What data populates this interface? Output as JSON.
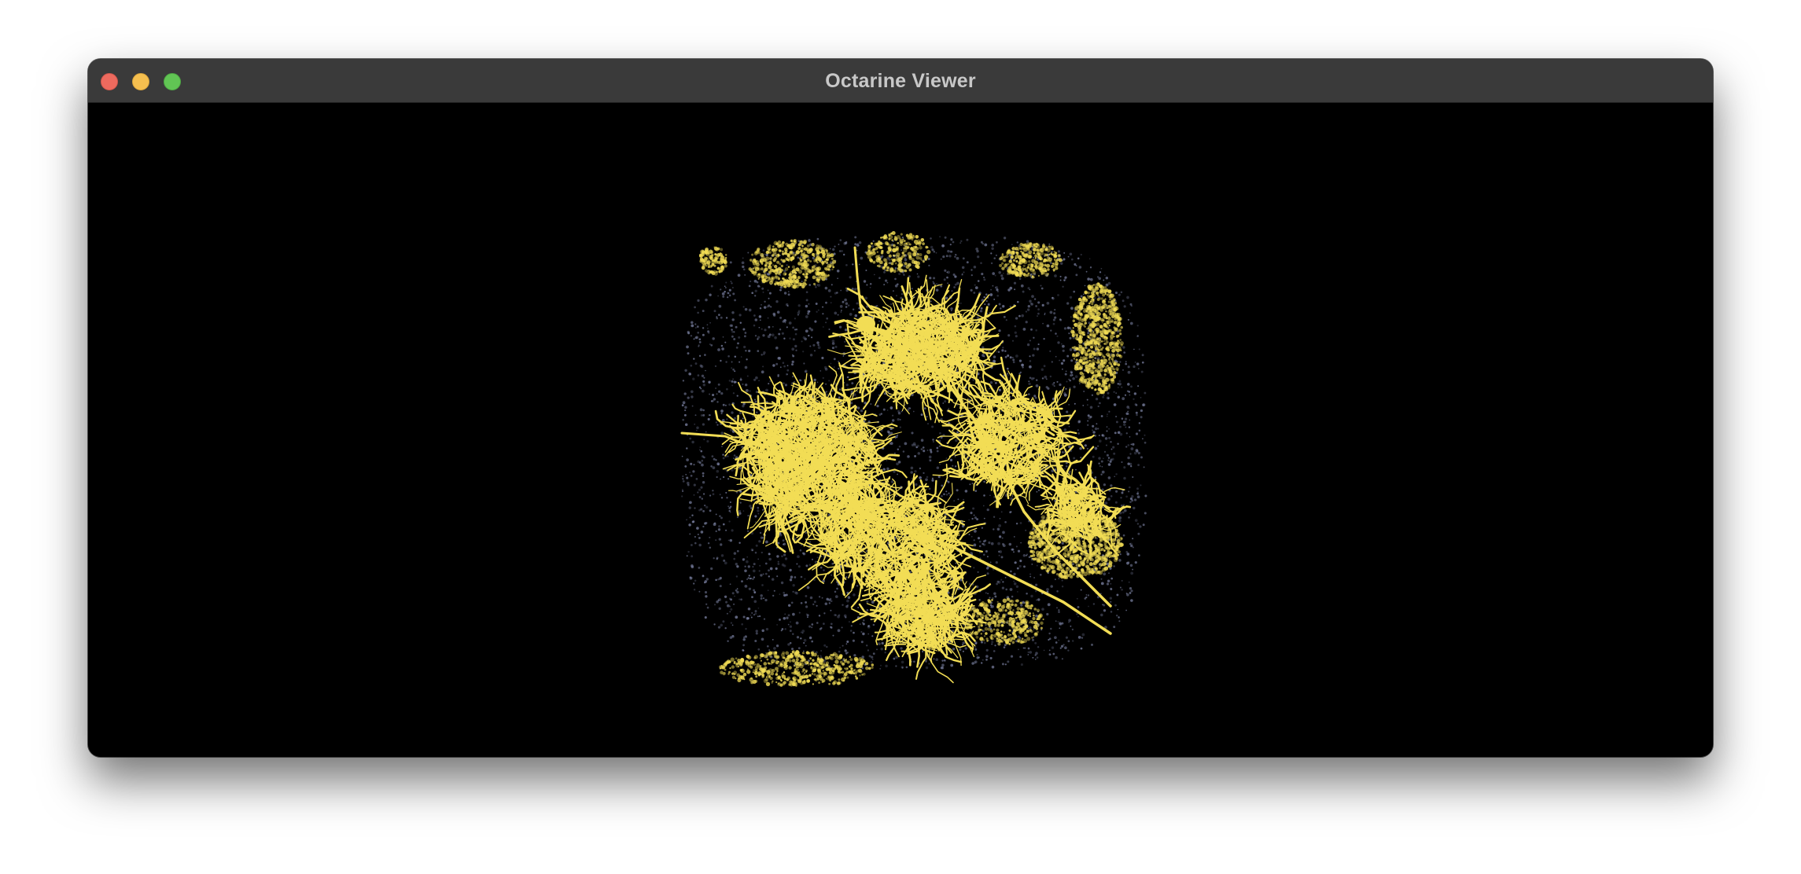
{
  "window": {
    "title": "Octarine Viewer"
  },
  "window_controls": [
    {
      "name": "close",
      "color": "#ed6a5e"
    },
    {
      "name": "minimize",
      "color": "#f5bf4f"
    },
    {
      "name": "maximize",
      "color": "#61c554"
    }
  ],
  "render": {
    "background": "#000000",
    "neuron_color": "#f2dd55",
    "speckle_color": "#7f86a8"
  }
}
